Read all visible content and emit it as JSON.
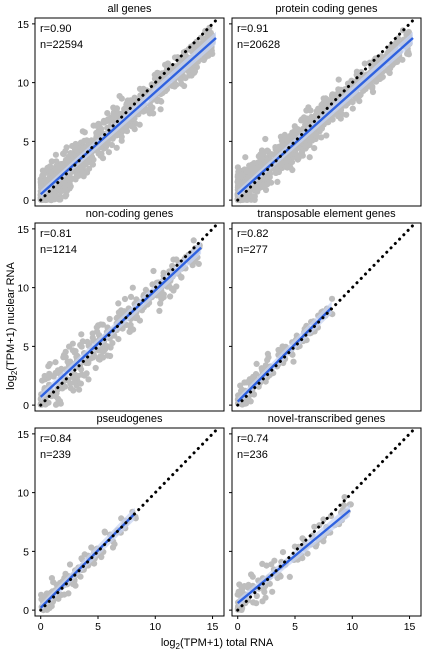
{
  "figure": {
    "ylabel_prefix": "log",
    "ylabel_sub": "2",
    "ylabel_rest": "(TPM+1) nuclear RNA",
    "xlabel_prefix": "log",
    "xlabel_sub": "2",
    "xlabel_rest": "(TPM+1) total RNA"
  },
  "colors": {
    "points": "#bdbdbd",
    "fit_line": "#2f62e0",
    "fit_band": "#c6d3f2",
    "identity_line": "#000000",
    "frame": "#000000"
  },
  "chart_data": [
    {
      "type": "scatter",
      "title": "all genes",
      "r_label": "r=0.90",
      "n_label": "n=22594",
      "xlim": [
        -0.5,
        16
      ],
      "ylim": [
        -0.5,
        15.5
      ],
      "xticks": [
        0,
        5,
        10,
        15
      ],
      "yticks": [
        0,
        5,
        10,
        15
      ],
      "fit": {
        "x": [
          0,
          15.3
        ],
        "y": [
          0.5,
          13.8
        ]
      },
      "identity": [
        0,
        15.5
      ],
      "cloud": {
        "n": 900,
        "xmax": 15,
        "slope": 0.87,
        "intercept": 0.5,
        "spread": 1.4,
        "seed": 11
      }
    },
    {
      "type": "scatter",
      "title": "protein coding genes",
      "r_label": "r=0.91",
      "n_label": "n=20628",
      "xlim": [
        -0.5,
        16
      ],
      "ylim": [
        -0.5,
        15.5
      ],
      "xticks": [
        0,
        5,
        10,
        15
      ],
      "yticks": [
        0,
        5,
        10,
        15
      ],
      "fit": {
        "x": [
          0,
          15.3
        ],
        "y": [
          0.5,
          13.8
        ]
      },
      "identity": [
        0,
        15.5
      ],
      "cloud": {
        "n": 850,
        "xmax": 15,
        "slope": 0.87,
        "intercept": 0.5,
        "spread": 1.35,
        "seed": 23
      }
    },
    {
      "type": "scatter",
      "title": "non-coding genes",
      "r_label": "r=0.81",
      "n_label": "n=1214",
      "xlim": [
        -0.5,
        16
      ],
      "ylim": [
        -0.5,
        15.5
      ],
      "xticks": [
        0,
        5,
        10,
        15
      ],
      "yticks": [
        0,
        5,
        10,
        15
      ],
      "fit": {
        "x": [
          0,
          14
        ],
        "y": [
          0.7,
          13.4
        ]
      },
      "identity": [
        0,
        15.5
      ],
      "cloud": {
        "n": 320,
        "xmax": 14,
        "slope": 0.9,
        "intercept": 0.6,
        "spread": 1.6,
        "seed": 37
      }
    },
    {
      "type": "scatter",
      "title": "transposable element genes",
      "r_label": "r=0.82",
      "n_label": "n=277",
      "xlim": [
        -0.5,
        16
      ],
      "ylim": [
        -0.5,
        15.5
      ],
      "xticks": [
        0,
        5,
        10,
        15
      ],
      "yticks": [
        0,
        5,
        10,
        15
      ],
      "fit": {
        "x": [
          0,
          8.2
        ],
        "y": [
          0.3,
          8.3
        ]
      },
      "identity": [
        0,
        15.5
      ],
      "cloud": {
        "n": 130,
        "xmax": 8.3,
        "slope": 0.97,
        "intercept": 0.3,
        "spread": 1.0,
        "seed": 41
      }
    },
    {
      "type": "scatter",
      "title": "pseudogenes",
      "r_label": "r=0.84",
      "n_label": "n=239",
      "xlim": [
        -0.5,
        16
      ],
      "ylim": [
        -0.5,
        15.5
      ],
      "xticks": [
        0,
        5,
        10,
        15
      ],
      "yticks": [
        0,
        5,
        10,
        15
      ],
      "fit": {
        "x": [
          0,
          8.2
        ],
        "y": [
          0.2,
          8.2
        ]
      },
      "identity": [
        0,
        15.5
      ],
      "cloud": {
        "n": 120,
        "xmax": 8.3,
        "slope": 0.97,
        "intercept": 0.2,
        "spread": 0.9,
        "seed": 53
      }
    },
    {
      "type": "scatter",
      "title": "novel-transcribed genes",
      "r_label": "r=0.74",
      "n_label": "n=236",
      "xlim": [
        -0.5,
        16
      ],
      "ylim": [
        -0.5,
        15.5
      ],
      "xticks": [
        0,
        5,
        10,
        15
      ],
      "yticks": [
        0,
        5,
        10,
        15
      ],
      "fit": {
        "x": [
          0,
          9.8
        ],
        "y": [
          0.6,
          8.5
        ]
      },
      "identity": [
        0,
        15.5
      ],
      "cloud": {
        "n": 120,
        "xmax": 10,
        "slope": 0.82,
        "intercept": 0.6,
        "spread": 1.2,
        "seed": 67
      }
    }
  ]
}
